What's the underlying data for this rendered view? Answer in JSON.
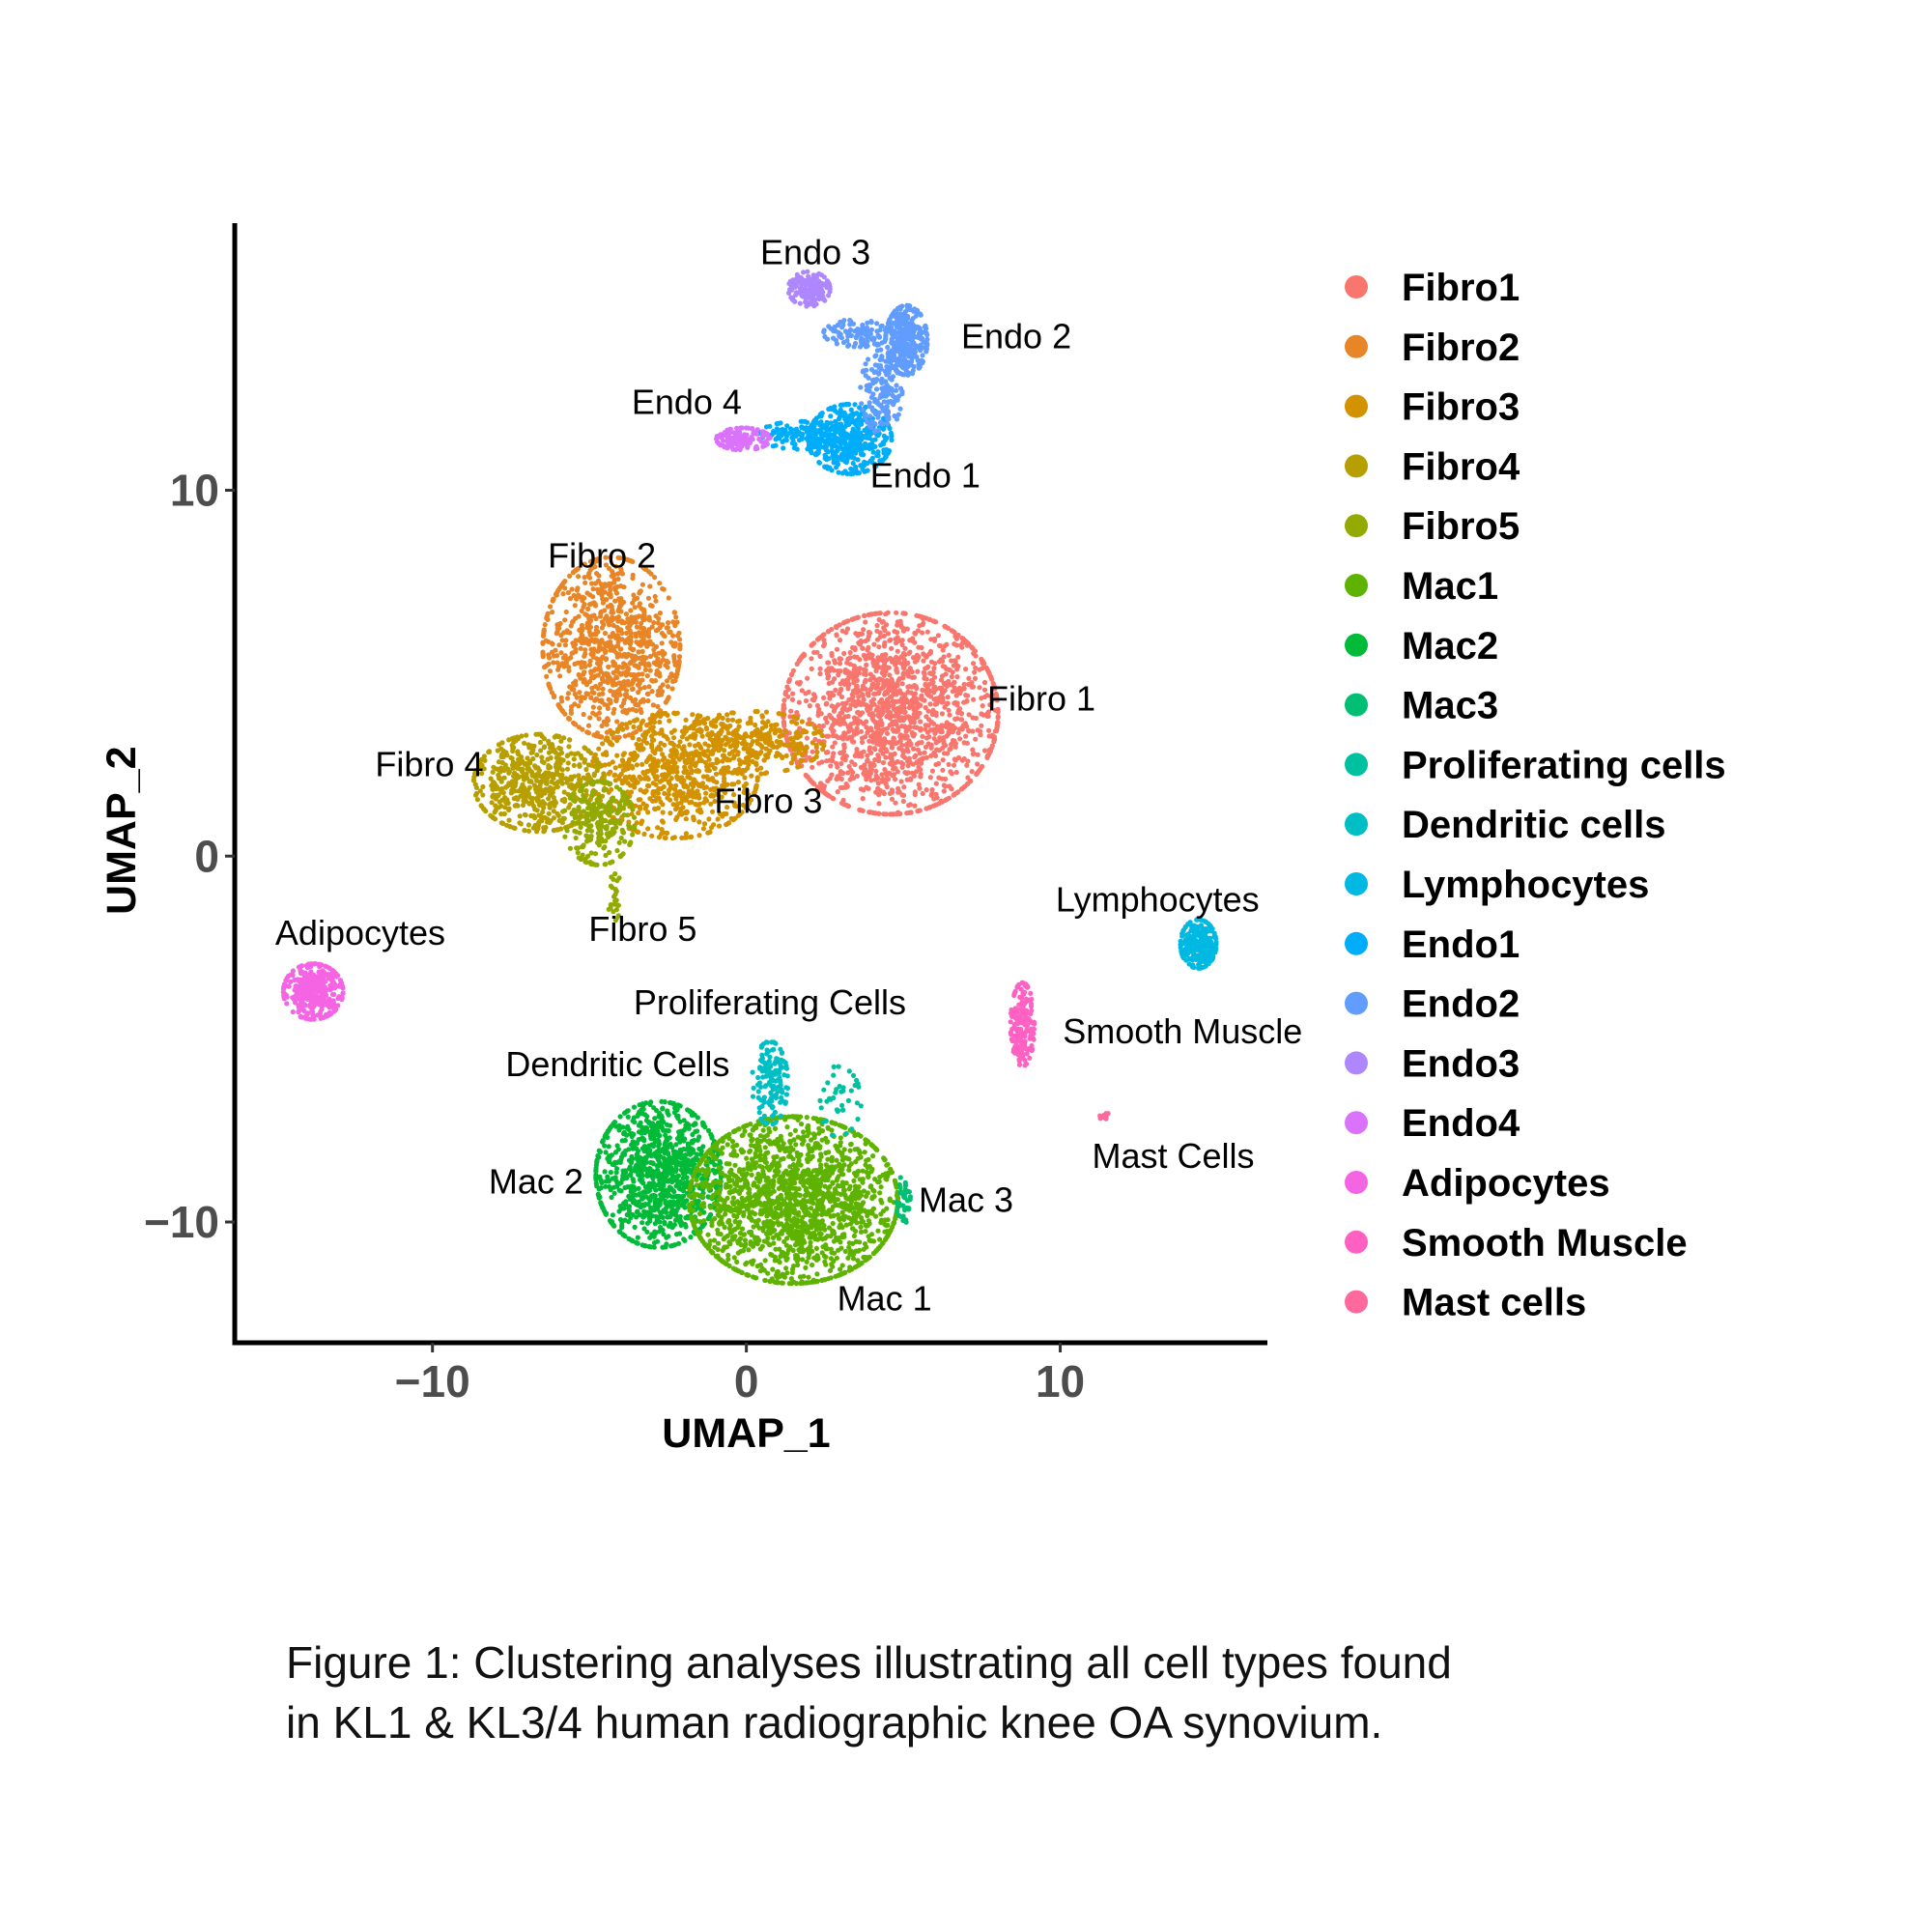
{
  "chart_data": {
    "type": "scatter",
    "xlabel": "UMAP_1",
    "ylabel": "UMAP_2",
    "xlim": [
      -16.3,
      16.6
    ],
    "ylim": [
      -13.3,
      17.3
    ],
    "xticks": [
      -10,
      0,
      10
    ],
    "yticks": [
      -10,
      0,
      10
    ],
    "xtick_labels": [
      "−10",
      "0",
      "10"
    ],
    "ytick_labels": [
      "−10",
      "0",
      "10"
    ],
    "grid": false,
    "legend_placement": "right",
    "legend": [
      {
        "name": "Fibro1",
        "color": "#F8766D"
      },
      {
        "name": "Fibro2",
        "color": "#E88526"
      },
      {
        "name": "Fibro3",
        "color": "#D39200"
      },
      {
        "name": "Fibro4",
        "color": "#B79F00"
      },
      {
        "name": "Fibro5",
        "color": "#93AA00"
      },
      {
        "name": "Mac1",
        "color": "#5EB300"
      },
      {
        "name": "Mac2",
        "color": "#00BA38"
      },
      {
        "name": "Mac3",
        "color": "#00BF74"
      },
      {
        "name": "Proliferating cells",
        "color": "#00C19F"
      },
      {
        "name": "Dendritic cells",
        "color": "#00BFC4"
      },
      {
        "name": "Lymphocytes",
        "color": "#00B9E3"
      },
      {
        "name": "Endo1",
        "color": "#00ADFA"
      },
      {
        "name": "Endo2",
        "color": "#619CFF"
      },
      {
        "name": "Endo3",
        "color": "#AE87FF"
      },
      {
        "name": "Endo4",
        "color": "#DB72FB"
      },
      {
        "name": "Adipocytes",
        "color": "#F564E3"
      },
      {
        "name": "Smooth Muscle",
        "color": "#FF61C3"
      },
      {
        "name": "Mast cells",
        "color": "#FF699C"
      }
    ],
    "clusters": [
      {
        "name": "Fibro1",
        "center": [
          4.6,
          3.9
        ],
        "spread": [
          1.8,
          1.45
        ],
        "n": 1600
      },
      {
        "name": "Fibro2",
        "center": [
          -4.3,
          5.7
        ],
        "spread": [
          1.15,
          1.3
        ],
        "n": 900
      },
      {
        "name": "Fibro3",
        "center": [
          -2.3,
          2.2
        ],
        "spread": [
          1.4,
          0.9
        ],
        "n": 700
      },
      {
        "name": "Fibro3",
        "center": [
          0.2,
          3.1
        ],
        "spread": [
          1.2,
          0.45
        ],
        "n": 300
      },
      {
        "name": "Fibro4",
        "center": [
          -6.6,
          2.0
        ],
        "spread": [
          1.1,
          0.7
        ],
        "n": 550
      },
      {
        "name": "Fibro5",
        "center": [
          -4.7,
          0.9
        ],
        "spread": [
          0.6,
          0.6
        ],
        "n": 250
      },
      {
        "name": "Fibro5",
        "center": [
          -4.2,
          -1.0
        ],
        "spread": [
          0.12,
          0.4
        ],
        "n": 25
      },
      {
        "name": "Endo1",
        "center": [
          3.3,
          11.4
        ],
        "spread": [
          0.7,
          0.5
        ],
        "n": 450
      },
      {
        "name": "Endo1",
        "center": [
          1.7,
          11.5
        ],
        "spread": [
          0.7,
          0.2
        ],
        "n": 120
      },
      {
        "name": "Endo2",
        "center": [
          5.1,
          14.1
        ],
        "spread": [
          0.35,
          0.5
        ],
        "n": 300
      },
      {
        "name": "Endo2",
        "center": [
          4.3,
          12.7
        ],
        "spread": [
          0.35,
          0.6
        ],
        "n": 150
      },
      {
        "name": "Endo2",
        "center": [
          3.6,
          14.3
        ],
        "spread": [
          0.6,
          0.2
        ],
        "n": 110
      },
      {
        "name": "Endo3",
        "center": [
          2.0,
          15.5
        ],
        "spread": [
          0.35,
          0.25
        ],
        "n": 160
      },
      {
        "name": "Endo4",
        "center": [
          -0.1,
          11.4
        ],
        "spread": [
          0.45,
          0.16
        ],
        "n": 140
      },
      {
        "name": "Adipocytes",
        "center": [
          -13.8,
          -3.7
        ],
        "spread": [
          0.5,
          0.4
        ],
        "n": 350
      },
      {
        "name": "Lymphocytes",
        "center": [
          14.4,
          -2.4
        ],
        "spread": [
          0.3,
          0.35
        ],
        "n": 230
      },
      {
        "name": "Smooth Muscle",
        "center": [
          8.8,
          -4.6
        ],
        "spread": [
          0.2,
          0.6
        ],
        "n": 170
      },
      {
        "name": "Mast cells",
        "center": [
          11.4,
          -7.1
        ],
        "spread": [
          0.08,
          0.06
        ],
        "n": 10
      },
      {
        "name": "Mac2",
        "center": [
          -2.8,
          -8.7
        ],
        "spread": [
          1.05,
          1.05
        ],
        "n": 1000
      },
      {
        "name": "Mac1",
        "center": [
          1.5,
          -9.4
        ],
        "spread": [
          1.75,
          1.2
        ],
        "n": 1700
      },
      {
        "name": "Mac3",
        "center": [
          5.0,
          -9.4
        ],
        "spread": [
          0.12,
          0.35
        ],
        "n": 40
      },
      {
        "name": "Dendritic cells",
        "center": [
          0.75,
          -6.2
        ],
        "spread": [
          0.3,
          0.6
        ],
        "n": 150
      },
      {
        "name": "Proliferating cells",
        "center": [
          2.9,
          -6.7
        ],
        "spread": [
          0.4,
          0.5
        ],
        "n": 40
      }
    ],
    "annotations": [
      {
        "text": "Endo 3",
        "x": 2.2,
        "y": 16.5
      },
      {
        "text": "Endo 2",
        "x": 8.6,
        "y": 14.2
      },
      {
        "text": "Endo 4",
        "x": -1.9,
        "y": 12.4
      },
      {
        "text": "Endo 1",
        "x": 5.7,
        "y": 10.4
      },
      {
        "text": "Fibro 2",
        "x": -4.6,
        "y": 8.2
      },
      {
        "text": "Fibro 1",
        "x": 9.4,
        "y": 4.3
      },
      {
        "text": "Fibro 4",
        "x": -10.1,
        "y": 2.5
      },
      {
        "text": "Fibro 3",
        "x": 0.7,
        "y": 1.5
      },
      {
        "text": "Fibro 5",
        "x": -3.3,
        "y": -2.0
      },
      {
        "text": "Adipocytes",
        "x": -12.3,
        "y": -2.1
      },
      {
        "text": "Lymphocytes",
        "x": 13.1,
        "y": -1.2
      },
      {
        "text": "Proliferating Cells",
        "x": 0.75,
        "y": -4.0
      },
      {
        "text": "Smooth Muscle",
        "x": 13.9,
        "y": -4.8
      },
      {
        "text": "Dendritic Cells",
        "x": -4.1,
        "y": -5.7
      },
      {
        "text": "Mast Cells",
        "x": 13.6,
        "y": -8.2
      },
      {
        "text": "Mac 2",
        "x": -6.7,
        "y": -8.9
      },
      {
        "text": "Mac 3",
        "x": 7.0,
        "y": -9.4
      },
      {
        "text": "Mac 1",
        "x": 4.4,
        "y": -12.1
      }
    ]
  },
  "caption": {
    "line1": "Figure 1: Clustering analyses illustrating all cell types found",
    "line2": "in KL1 & KL3/4 human radiographic knee OA synovium."
  }
}
